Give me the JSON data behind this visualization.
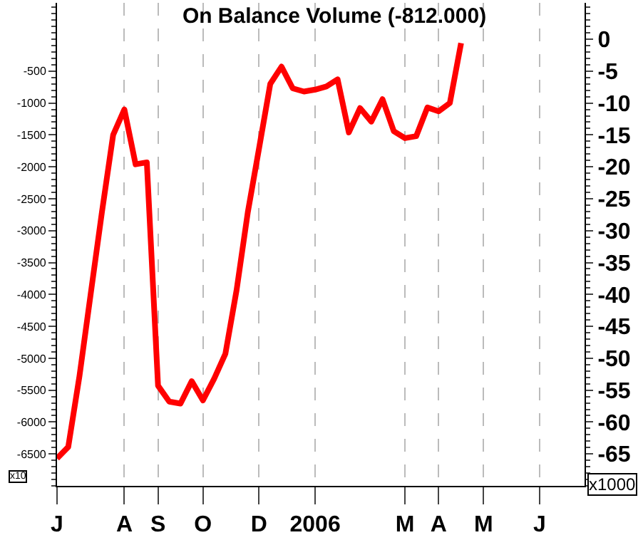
{
  "chart_data": {
    "type": "line",
    "title": "On Balance Volume (-812.000)",
    "categories": [
      "J",
      null,
      null,
      null,
      null,
      null,
      "A",
      null,
      null,
      "S",
      null,
      null,
      null,
      "O",
      null,
      null,
      null,
      null,
      "D",
      null,
      null,
      null,
      null,
      "2006",
      null,
      null,
      null,
      null,
      null,
      null,
      null,
      "M",
      null,
      null,
      "A",
      null,
      null,
      null,
      "M",
      null,
      null,
      null,
      null,
      "J",
      null,
      null,
      null,
      null
    ],
    "series": [
      {
        "color": "#ff0000",
        "values": [
          -6570,
          -6390,
          -5280,
          -3990,
          -2710,
          -1500,
          -1100,
          -1960,
          -1930,
          -5430,
          -5680,
          -5710,
          -5360,
          -5660,
          -5320,
          -4930,
          -3930,
          -2710,
          -1710,
          -700,
          -430,
          -770,
          -820,
          -790,
          -740,
          -630,
          -1460,
          -1080,
          -1290,
          -940,
          -1440,
          -1550,
          -1520,
          -1070,
          -1130,
          -1000,
          -60,
          null,
          null,
          null,
          null,
          null,
          null,
          null,
          null,
          null,
          null,
          null
        ]
      }
    ],
    "ylim": [
      -7000,
      570
    ],
    "yticks": [
      -500,
      -1000,
      -1500,
      -2000,
      -2500,
      -3000,
      -3500,
      -4000,
      -4500,
      -5000,
      -5500,
      -6000,
      -6500
    ],
    "y2lim": [
      -70,
      5.7
    ],
    "y2ticks": [
      0,
      -5,
      -10,
      -15,
      -20,
      -25,
      -30,
      -35,
      -40,
      -45,
      -50,
      -55,
      -60,
      -65
    ],
    "annotations": [
      "x10",
      "x1000"
    ],
    "grid": "x",
    "marker": "none",
    "line_style": "solid"
  }
}
